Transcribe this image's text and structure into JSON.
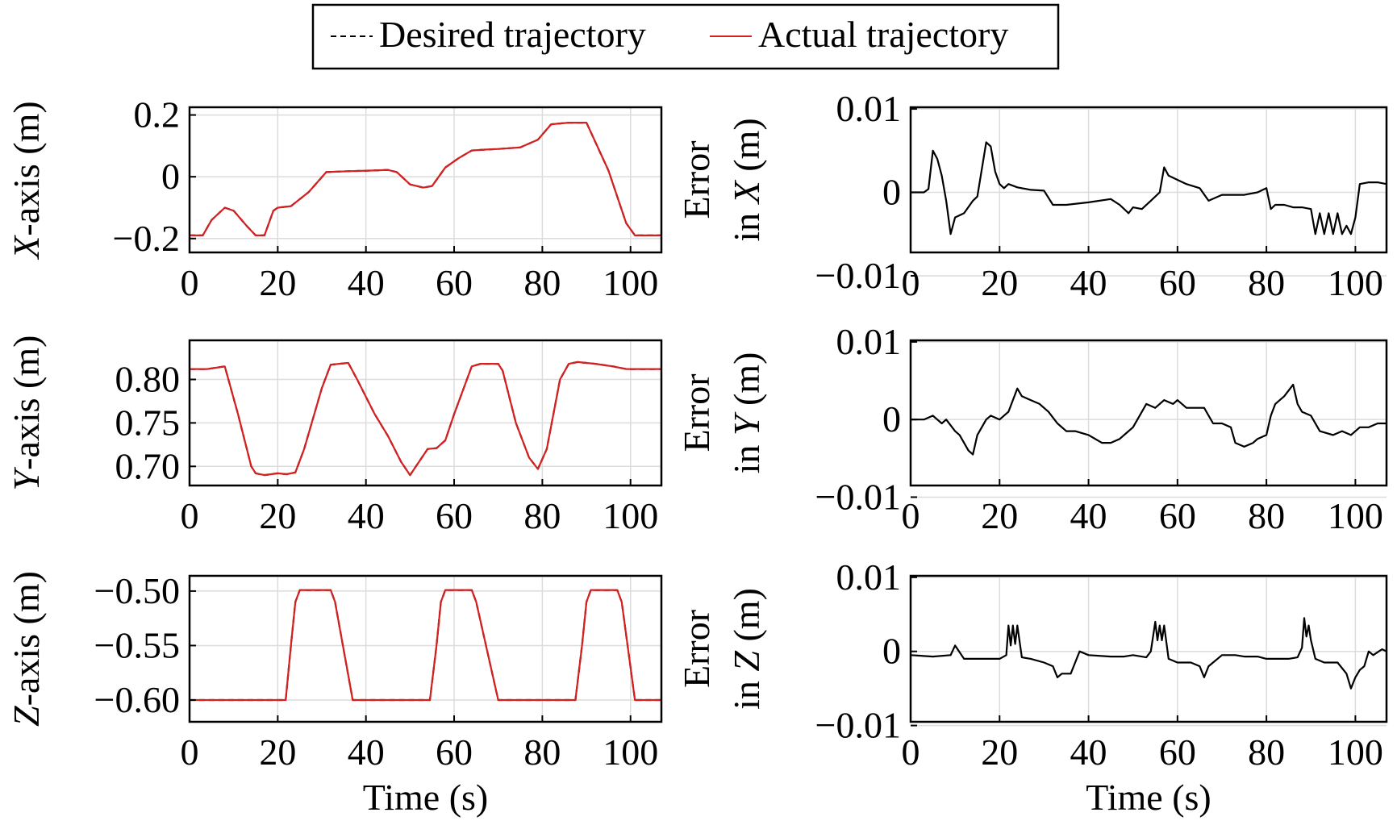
{
  "legend": {
    "desired_label": "Desired trajectory",
    "actual_label": "Actual trajectory",
    "placement": "top-center"
  },
  "colors": {
    "desired": "#000000",
    "actual": "#d62020",
    "error": "#000000",
    "grid": "#dcdcdc"
  },
  "chart_data": [
    {
      "id": "x-position",
      "type": "line",
      "ylabel_italic": "X",
      "ylabel_rest": "-axis (m)",
      "xlabel": "",
      "xlim": [
        0,
        107
      ],
      "ylim": [
        -0.245,
        0.225
      ],
      "xticks": [
        0,
        20,
        40,
        60,
        80,
        100
      ],
      "xtick_labels": [
        "0",
        "20",
        "40",
        "60",
        "80",
        "100"
      ],
      "yticks": [
        0.2,
        0,
        -0.2
      ],
      "ytick_labels": [
        "0.2",
        "0",
        "−0.2"
      ],
      "grid": true,
      "series": [
        {
          "name": "Desired trajectory",
          "style": "dashed",
          "x": [
            0,
            3,
            5,
            8,
            10,
            13,
            15,
            17,
            19,
            20,
            23,
            27,
            31,
            36,
            41,
            45,
            47,
            50,
            53,
            55,
            58,
            61,
            64,
            67,
            70,
            75,
            79,
            82,
            86,
            90,
            95,
            99,
            101,
            104,
            107
          ],
          "y": [
            -0.19,
            -0.19,
            -0.14,
            -0.1,
            -0.11,
            -0.16,
            -0.19,
            -0.19,
            -0.11,
            -0.1,
            -0.095,
            -0.05,
            0.015,
            0.018,
            0.02,
            0.022,
            0.015,
            -0.025,
            -0.035,
            -0.03,
            0.03,
            0.06,
            0.085,
            0.088,
            0.09,
            0.095,
            0.12,
            0.17,
            0.175,
            0.175,
            0.02,
            -0.15,
            -0.19,
            -0.19,
            -0.19
          ]
        },
        {
          "name": "Actual trajectory",
          "style": "solid",
          "x": [
            0,
            3,
            5,
            8,
            10,
            13,
            15,
            17,
            19,
            20,
            23,
            27,
            31,
            36,
            41,
            45,
            47,
            50,
            53,
            55,
            58,
            61,
            64,
            67,
            70,
            75,
            79,
            82,
            86,
            90,
            95,
            99,
            101,
            104,
            107
          ],
          "y": [
            -0.19,
            -0.19,
            -0.14,
            -0.1,
            -0.11,
            -0.16,
            -0.19,
            -0.19,
            -0.11,
            -0.1,
            -0.095,
            -0.05,
            0.015,
            0.018,
            0.02,
            0.022,
            0.015,
            -0.025,
            -0.035,
            -0.03,
            0.03,
            0.06,
            0.085,
            0.088,
            0.09,
            0.095,
            0.12,
            0.17,
            0.175,
            0.175,
            0.02,
            -0.15,
            -0.19,
            -0.19,
            -0.19
          ]
        }
      ]
    },
    {
      "id": "x-error",
      "type": "line",
      "ylabel_top": "Error",
      "ylabel_prefix": "in ",
      "ylabel_italic": "X",
      "ylabel_rest": " (m)",
      "xlabel": "",
      "xlim": [
        0,
        107
      ],
      "ylim": [
        -0.0072,
        0.0102
      ],
      "xticks": [
        0,
        20,
        40,
        60,
        80,
        100
      ],
      "xtick_labels": [
        "0",
        "20",
        "40",
        "60",
        "80",
        "100"
      ],
      "yticks": [
        0.01,
        0,
        -0.01
      ],
      "ytick_labels": [
        "0.01",
        "0",
        "−0.01"
      ],
      "grid": true,
      "series": [
        {
          "name": "error-x",
          "style": "solid",
          "x": [
            0,
            3,
            4,
            5,
            6,
            7,
            8,
            9,
            10,
            12,
            14,
            15,
            17,
            18,
            19,
            20,
            21,
            22,
            24,
            27,
            30,
            32,
            35,
            40,
            45,
            47,
            49,
            50,
            52,
            54,
            56,
            57,
            58,
            60,
            62,
            65,
            67,
            70,
            73,
            75,
            78,
            80,
            81,
            82,
            84,
            86,
            88,
            90,
            91,
            92,
            93,
            94,
            95,
            96,
            97,
            98,
            99,
            100,
            101,
            103,
            105,
            107
          ],
          "y": [
            0,
            0,
            0.0004,
            0.005,
            0.004,
            0.002,
            -0.001,
            -0.005,
            -0.003,
            -0.0025,
            -0.001,
            -0.0005,
            0.006,
            0.0055,
            0.0025,
            0.001,
            0.0005,
            0.001,
            0.0006,
            0.0003,
            0.0002,
            -0.0015,
            -0.0015,
            -0.0012,
            -0.0008,
            -0.0015,
            -0.0025,
            -0.0018,
            -0.002,
            -0.001,
            0,
            0.003,
            0.002,
            0.0015,
            0.001,
            0.0005,
            -0.001,
            -0.0003,
            -0.0003,
            -0.0003,
            0,
            0.0005,
            -0.002,
            -0.0015,
            -0.0015,
            -0.0018,
            -0.0018,
            -0.002,
            -0.005,
            -0.0025,
            -0.005,
            -0.0025,
            -0.005,
            -0.0025,
            -0.005,
            -0.004,
            -0.005,
            -0.003,
            0.001,
            0.0012,
            0.0012,
            0.001
          ]
        }
      ]
    },
    {
      "id": "y-position",
      "type": "line",
      "ylabel_italic": "Y",
      "ylabel_rest": "-axis (m)",
      "xlabel": "",
      "xlim": [
        0,
        107
      ],
      "ylim": [
        0.678,
        0.845
      ],
      "xticks": [
        0,
        20,
        40,
        60,
        80,
        100
      ],
      "xtick_labels": [
        "0",
        "20",
        "40",
        "60",
        "80",
        "100"
      ],
      "yticks": [
        0.8,
        0.75,
        0.7
      ],
      "ytick_labels": [
        "0.80",
        "0.75",
        "0.70"
      ],
      "grid": true,
      "series": [
        {
          "name": "Desired trajectory",
          "style": "dashed",
          "x": [
            0,
            4,
            8,
            11,
            14,
            15,
            17,
            20,
            22,
            24,
            26,
            30,
            32,
            36,
            38,
            42,
            45,
            48,
            50,
            52,
            54,
            56,
            58,
            60,
            64,
            66,
            70,
            71,
            74,
            77,
            79,
            81,
            84,
            86,
            88,
            92,
            96,
            99,
            102,
            107
          ],
          "y": [
            0.812,
            0.812,
            0.815,
            0.76,
            0.7,
            0.692,
            0.69,
            0.692,
            0.691,
            0.693,
            0.72,
            0.79,
            0.817,
            0.819,
            0.8,
            0.76,
            0.735,
            0.705,
            0.69,
            0.705,
            0.72,
            0.721,
            0.73,
            0.76,
            0.815,
            0.818,
            0.818,
            0.81,
            0.75,
            0.71,
            0.697,
            0.72,
            0.8,
            0.818,
            0.82,
            0.818,
            0.815,
            0.812,
            0.812,
            0.812
          ]
        },
        {
          "name": "Actual trajectory",
          "style": "solid",
          "x": [
            0,
            4,
            8,
            11,
            14,
            15,
            17,
            20,
            22,
            24,
            26,
            30,
            32,
            36,
            38,
            42,
            45,
            48,
            50,
            52,
            54,
            56,
            58,
            60,
            64,
            66,
            70,
            71,
            74,
            77,
            79,
            81,
            84,
            86,
            88,
            92,
            96,
            99,
            102,
            107
          ],
          "y": [
            0.812,
            0.812,
            0.815,
            0.76,
            0.7,
            0.692,
            0.69,
            0.692,
            0.691,
            0.693,
            0.72,
            0.79,
            0.817,
            0.819,
            0.8,
            0.76,
            0.735,
            0.705,
            0.69,
            0.705,
            0.72,
            0.721,
            0.73,
            0.76,
            0.815,
            0.818,
            0.818,
            0.81,
            0.75,
            0.71,
            0.697,
            0.72,
            0.8,
            0.818,
            0.82,
            0.818,
            0.815,
            0.812,
            0.812,
            0.812
          ]
        }
      ]
    },
    {
      "id": "y-error",
      "type": "line",
      "ylabel_top": "Error",
      "ylabel_prefix": "in ",
      "ylabel_italic": "Y",
      "ylabel_rest": " (m)",
      "xlabel": "",
      "xlim": [
        0,
        107
      ],
      "ylim": [
        -0.0085,
        0.0102
      ],
      "xticks": [
        0,
        20,
        40,
        60,
        80,
        100
      ],
      "xtick_labels": [
        "0",
        "20",
        "40",
        "60",
        "80",
        "100"
      ],
      "yticks": [
        0.01,
        0,
        -0.01
      ],
      "ytick_labels": [
        "0.01",
        "0",
        "−0.01"
      ],
      "grid": true,
      "series": [
        {
          "name": "error-y",
          "style": "solid",
          "x": [
            0,
            3,
            5,
            7,
            8,
            10,
            11,
            12,
            13,
            14,
            15,
            17,
            18,
            20,
            22,
            23,
            24,
            25,
            27,
            29,
            31,
            33,
            35,
            37,
            40,
            43,
            45,
            47,
            50,
            52,
            53,
            55,
            57,
            59,
            60,
            62,
            64,
            66,
            68,
            70,
            72,
            73,
            75,
            77,
            78,
            80,
            81,
            82,
            84,
            86,
            87,
            88,
            90,
            92,
            95,
            97,
            99,
            101,
            103,
            105,
            107
          ],
          "y": [
            0,
            0,
            0.0005,
            -0.0005,
            0,
            -0.0015,
            -0.002,
            -0.003,
            -0.004,
            -0.0045,
            -0.002,
            0,
            0.0005,
            0,
            0.001,
            0.0025,
            0.004,
            0.003,
            0.0025,
            0.002,
            0.001,
            -0.0005,
            -0.0015,
            -0.0015,
            -0.002,
            -0.003,
            -0.003,
            -0.0025,
            -0.001,
            0.001,
            0.002,
            0.0015,
            0.0025,
            0.002,
            0.0025,
            0.0015,
            0.0015,
            0.0015,
            -0.0005,
            -0.0005,
            -0.001,
            -0.003,
            -0.0035,
            -0.003,
            -0.0025,
            -0.002,
            0.0005,
            0.002,
            0.003,
            0.0045,
            0.002,
            0.001,
            0.0005,
            -0.0015,
            -0.002,
            -0.0015,
            -0.002,
            -0.001,
            -0.001,
            -0.0005,
            -0.0005
          ]
        }
      ]
    },
    {
      "id": "z-position",
      "type": "line",
      "ylabel_italic": "Z",
      "ylabel_rest": "-axis (m)",
      "xlabel": "Time (s)",
      "xlim": [
        0,
        107
      ],
      "ylim": [
        -0.62,
        -0.486
      ],
      "xticks": [
        0,
        20,
        40,
        60,
        80,
        100
      ],
      "xtick_labels": [
        "0",
        "20",
        "40",
        "60",
        "80",
        "100"
      ],
      "yticks": [
        -0.5,
        -0.55,
        -0.6
      ],
      "ytick_labels": [
        "−0.50",
        "−0.55",
        "−0.60"
      ],
      "grid": true,
      "series": [
        {
          "name": "Desired trajectory",
          "style": "dashed",
          "x": [
            0,
            10,
            20,
            21.8,
            23,
            24,
            25,
            32,
            33,
            37,
            40,
            50,
            54.5,
            56,
            57,
            58,
            64,
            65,
            70,
            72,
            80,
            87.5,
            89,
            90,
            91,
            97,
            98,
            101,
            103,
            107
          ],
          "y": [
            -0.6,
            -0.6,
            -0.6,
            -0.6,
            -0.55,
            -0.51,
            -0.499,
            -0.499,
            -0.51,
            -0.6,
            -0.6,
            -0.6,
            -0.6,
            -0.55,
            -0.51,
            -0.499,
            -0.499,
            -0.51,
            -0.6,
            -0.6,
            -0.6,
            -0.6,
            -0.55,
            -0.51,
            -0.499,
            -0.499,
            -0.51,
            -0.6,
            -0.6,
            -0.6
          ]
        },
        {
          "name": "Actual trajectory",
          "style": "solid",
          "x": [
            0,
            10,
            20,
            21.8,
            23,
            24,
            25,
            32,
            33,
            37,
            40,
            50,
            54.5,
            56,
            57,
            58,
            64,
            65,
            70,
            72,
            80,
            87.5,
            89,
            90,
            91,
            97,
            98,
            101,
            103,
            107
          ],
          "y": [
            -0.6,
            -0.6,
            -0.6,
            -0.6,
            -0.55,
            -0.51,
            -0.499,
            -0.499,
            -0.51,
            -0.6,
            -0.6,
            -0.6,
            -0.6,
            -0.55,
            -0.51,
            -0.499,
            -0.499,
            -0.51,
            -0.6,
            -0.6,
            -0.6,
            -0.6,
            -0.55,
            -0.51,
            -0.499,
            -0.499,
            -0.51,
            -0.6,
            -0.6,
            -0.6
          ]
        }
      ]
    },
    {
      "id": "z-error",
      "type": "line",
      "ylabel_top": "Error",
      "ylabel_prefix": "in ",
      "ylabel_italic": "Z",
      "ylabel_rest": " (m)",
      "xlabel": "Time (s)",
      "xlim": [
        0,
        107
      ],
      "ylim": [
        -0.0095,
        0.0102
      ],
      "xticks": [
        0,
        20,
        40,
        60,
        80,
        100
      ],
      "xtick_labels": [
        "0",
        "20",
        "40",
        "60",
        "80",
        "100"
      ],
      "yticks": [
        0.01,
        0,
        -0.01
      ],
      "ytick_labels": [
        "0.01",
        "0",
        "−0.01"
      ],
      "grid": true,
      "series": [
        {
          "name": "error-z",
          "style": "solid",
          "x": [
            0,
            5,
            9,
            10,
            12,
            16,
            20,
            21.5,
            22,
            22.5,
            23,
            23.5,
            24,
            25,
            27,
            30,
            32,
            33,
            34,
            36,
            37,
            38,
            40,
            45,
            48,
            50,
            53,
            54,
            55,
            55.5,
            56,
            56.5,
            57,
            58,
            60,
            63,
            65,
            66,
            67,
            70,
            73,
            75,
            78,
            80,
            85,
            87,
            88,
            88.5,
            89,
            89.5,
            90,
            91,
            93,
            96,
            98,
            99,
            100,
            101,
            102,
            103,
            104,
            106,
            107
          ],
          "y": [
            -0.0005,
            -0.0007,
            -0.0005,
            0.0008,
            -0.001,
            -0.001,
            -0.001,
            -0.0005,
            0.0035,
            0.0008,
            0.0035,
            0.001,
            0.0035,
            -0.0008,
            -0.001,
            -0.0015,
            -0.002,
            -0.0035,
            -0.003,
            -0.003,
            -0.0015,
            0,
            -0.0005,
            -0.0007,
            -0.0007,
            -0.0005,
            -0.0008,
            0,
            0.004,
            0.0015,
            0.0035,
            0.0015,
            0.0035,
            -0.001,
            -0.0015,
            -0.0015,
            -0.002,
            -0.0035,
            -0.002,
            -0.0005,
            -0.0005,
            -0.0007,
            -0.0007,
            -0.001,
            -0.001,
            -0.0008,
            0.0005,
            0.0045,
            0.002,
            0.0035,
            0.0015,
            -0.001,
            -0.0015,
            -0.0015,
            -0.003,
            -0.005,
            -0.0035,
            -0.0025,
            -0.002,
            0,
            -0.0005,
            0.0003,
            0
          ]
        }
      ]
    }
  ]
}
